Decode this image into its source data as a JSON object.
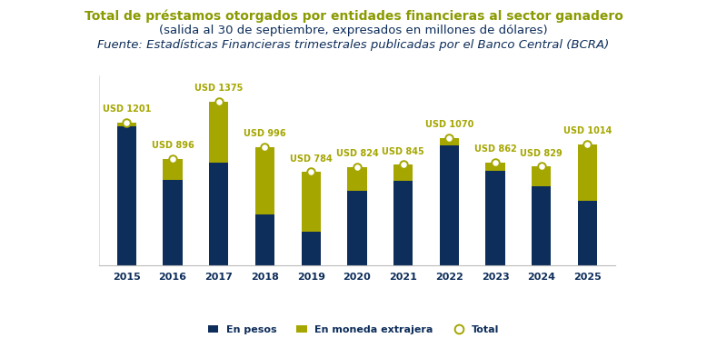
{
  "chart_data": {
    "type": "bar",
    "title": "Total de préstamos otorgados por entidades financieras al sector ganadero",
    "subtitle": "(salida al 30 de septiembre, expresados en millones de dólares)",
    "source": "Fuente: Estadísticas Financieras trimestrales publicadas por el Banco Central (BCRA)",
    "categories": [
      "2015",
      "2016",
      "2017",
      "2018",
      "2019",
      "2020",
      "2021",
      "2022",
      "2023",
      "2024",
      "2025"
    ],
    "stacked": true,
    "series": [
      {
        "name": "En pesos",
        "type": "bar",
        "color": "#0d2d5a",
        "values": [
          1166,
          715,
          860,
          426,
          281,
          627,
          707,
          1005,
          796,
          667,
          539
        ]
      },
      {
        "name": "En moneda extrajera",
        "type": "bar",
        "color": "#a5a600",
        "values": [
          35,
          181,
          515,
          570,
          503,
          197,
          138,
          65,
          66,
          162,
          475
        ]
      },
      {
        "name": "Total",
        "type": "scatter",
        "color": "#a5a600",
        "marker": "circle",
        "data_labels": true,
        "values": [
          1201,
          896,
          1375,
          996,
          784,
          824,
          845,
          1070,
          862,
          829,
          1014
        ],
        "value_labels": [
          "USD 1201",
          "USD 896",
          "USD 1375",
          "USD 996",
          "USD 784",
          "USD 824",
          "USD 845",
          "USD 1070",
          "USD 862",
          "USD 829",
          "USD 1014"
        ]
      }
    ],
    "ylim": [
      0,
      1600
    ],
    "yticks": [],
    "tick_labels": "x",
    "grid": false,
    "legend": "lower center"
  }
}
